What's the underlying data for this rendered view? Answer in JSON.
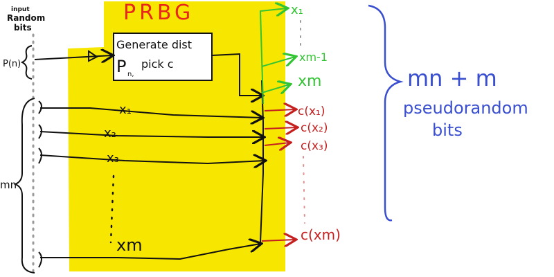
{
  "title": "PRBG",
  "input_label": [
    "input",
    "Random",
    "bits"
  ],
  "p_label": "P(n)",
  "mn_label": "mn",
  "box": {
    "line1": "Generate dist",
    "line2_p": "P",
    "line2_sub": "n,",
    "line2_rest": "pick c"
  },
  "inner_x_labels": [
    "x₁",
    "x₂",
    "x₃"
  ],
  "inner_xm": "xm",
  "green_outputs": [
    "x₁",
    "xm-1",
    "xm"
  ],
  "red_outputs": [
    "c(x₁)",
    "c(x₂)",
    "c(x₃)",
    "c(xm)"
  ],
  "result_lines": [
    "mn + m",
    "pseudorandom",
    "bits"
  ],
  "colors": {
    "box_fill": "#f7e600",
    "title": "#e8261c",
    "green": "#33c433",
    "red": "#c42020",
    "blue": "#3a4fcf",
    "ink": "#111111",
    "dots": "#9a9a9a"
  }
}
